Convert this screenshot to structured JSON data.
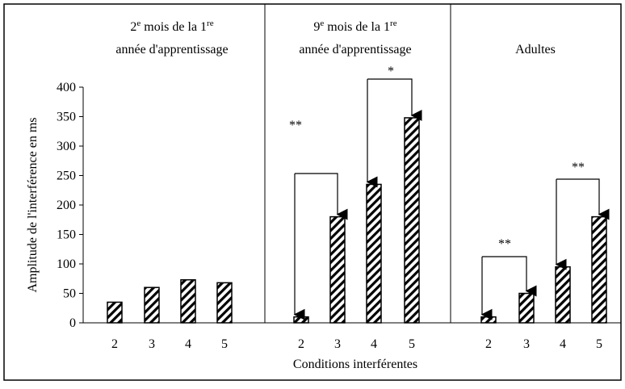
{
  "chart_data": {
    "type": "bar",
    "ylabel": "Amplitude de l'interférence en ms",
    "xlabel": "Conditions interférentes",
    "ylim": [
      0,
      400
    ],
    "yticks": [
      0,
      50,
      100,
      150,
      200,
      250,
      300,
      350,
      400
    ],
    "color": "#000000",
    "panels": [
      {
        "title": [
          [
            {
              "text": "2"
            },
            {
              "text": "e",
              "sup": true
            },
            {
              "text": " mois de la 1"
            },
            {
              "text": "re",
              "sup": true
            }
          ],
          [
            {
              "text": "année d'apprentissage"
            }
          ]
        ],
        "categories": [
          "2",
          "3",
          "4",
          "5"
        ],
        "values": [
          35,
          60,
          73,
          68
        ],
        "annotations": []
      },
      {
        "title": [
          [
            {
              "text": "9"
            },
            {
              "text": "e",
              "sup": true
            },
            {
              "text": " mois de la 1"
            },
            {
              "text": "re",
              "sup": true
            }
          ],
          [
            {
              "text": "année d'apprentissage"
            }
          ]
        ],
        "categories": [
          "2",
          "3",
          "4",
          "5"
        ],
        "values": [
          10,
          180,
          235,
          348
        ],
        "annotations": [
          "**",
          "*"
        ]
      },
      {
        "title": [
          [
            {
              "text": "Adultes"
            }
          ]
        ],
        "categories": [
          "2",
          "3",
          "4",
          "5"
        ],
        "values": [
          10,
          50,
          95,
          180
        ],
        "annotations": [
          "**",
          "**"
        ]
      }
    ]
  }
}
